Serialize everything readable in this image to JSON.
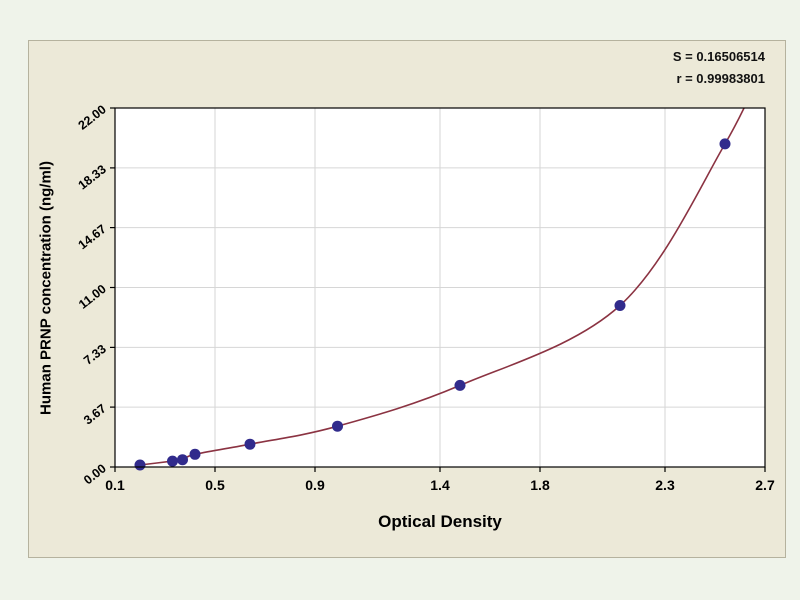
{
  "stats": {
    "s_line": "S = 0.16506514",
    "r_line": "r = 0.99983801"
  },
  "chart_data": {
    "type": "scatter",
    "fit": "exponential standard curve",
    "title": "",
    "xlabel": "Optical Density",
    "ylabel": "Human PRNP concentration (ng/ml)",
    "xlim": [
      0.1,
      2.7
    ],
    "ylim": [
      0,
      22
    ],
    "grid": true,
    "x_ticks": [
      0.1,
      0.5,
      0.9,
      1.4,
      1.8,
      2.3,
      2.7
    ],
    "x_tick_labels": [
      "0.1",
      "0.5",
      "0.9",
      "1.4",
      "1.8",
      "2.3",
      "2.7"
    ],
    "y_ticks": [
      0,
      3.67,
      7.33,
      11.0,
      14.67,
      18.33,
      22.0
    ],
    "y_tick_labels": [
      "0.00",
      "3.67",
      "7.33",
      "11.00",
      "14.67",
      "18.33",
      "22.00"
    ],
    "points": [
      {
        "x": 0.2,
        "y": 0.12
      },
      {
        "x": 0.33,
        "y": 0.36
      },
      {
        "x": 0.37,
        "y": 0.45
      },
      {
        "x": 0.42,
        "y": 0.78
      },
      {
        "x": 0.64,
        "y": 1.4
      },
      {
        "x": 0.99,
        "y": 2.5
      },
      {
        "x": 1.48,
        "y": 5.0
      },
      {
        "x": 2.12,
        "y": 9.9
      },
      {
        "x": 2.54,
        "y": 19.8
      }
    ],
    "colors": {
      "page_bg": "#eff3ea",
      "panel_bg": "#ece9d8",
      "plot_bg": "#ffffff",
      "grid": "#d6d6d6",
      "axis": "#000000",
      "point": "#312b8c",
      "curve": "#8b3342"
    }
  }
}
